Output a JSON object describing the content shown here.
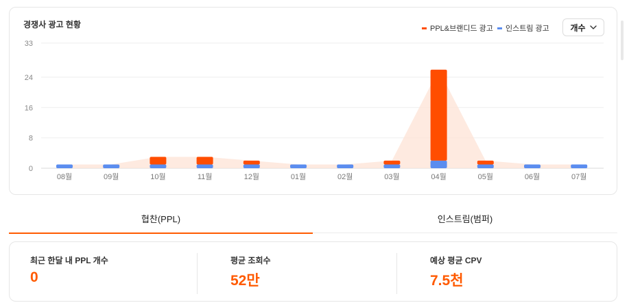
{
  "chart_card": {
    "title": "경쟁사 광고 현황",
    "count_button_label": "개수"
  },
  "chart_data": {
    "type": "bar",
    "stacked": true,
    "title": "경쟁사 광고 현황",
    "categories": [
      "08월",
      "09월",
      "10월",
      "11월",
      "12월",
      "01월",
      "02월",
      "03월",
      "04월",
      "05월",
      "06월",
      "07월"
    ],
    "series": [
      {
        "name": "인스트림 광고",
        "color": "#5b8def",
        "values": [
          1,
          1,
          1,
          1,
          1,
          1,
          1,
          1,
          2,
          1,
          1,
          1
        ]
      },
      {
        "name": "PPL&브랜디드 광고",
        "color": "#ff4d00",
        "values": [
          0,
          0,
          2,
          2,
          1,
          0,
          0,
          1,
          24,
          1,
          0,
          0
        ]
      }
    ],
    "yticks": [
      0,
      8,
      16,
      24,
      33
    ],
    "ylim": [
      0,
      33
    ],
    "grid": true,
    "legend_position": "top-right",
    "area_overlay": "total",
    "area_color": "#fde3d6"
  },
  "tabs": [
    {
      "label": "협찬(PPL)",
      "active": true
    },
    {
      "label": "인스트림(범퍼)",
      "active": false
    }
  ],
  "stats": [
    {
      "label": "최근 한달 내 PPL 개수",
      "value": "0"
    },
    {
      "label": "평균 조회수",
      "value": "52만"
    },
    {
      "label": "예상 평균 CPV",
      "value": "7.5천"
    }
  ],
  "colors": {
    "accent": "#ff5a00"
  },
  "icons": {
    "count_button": "chevron-down-icon"
  }
}
